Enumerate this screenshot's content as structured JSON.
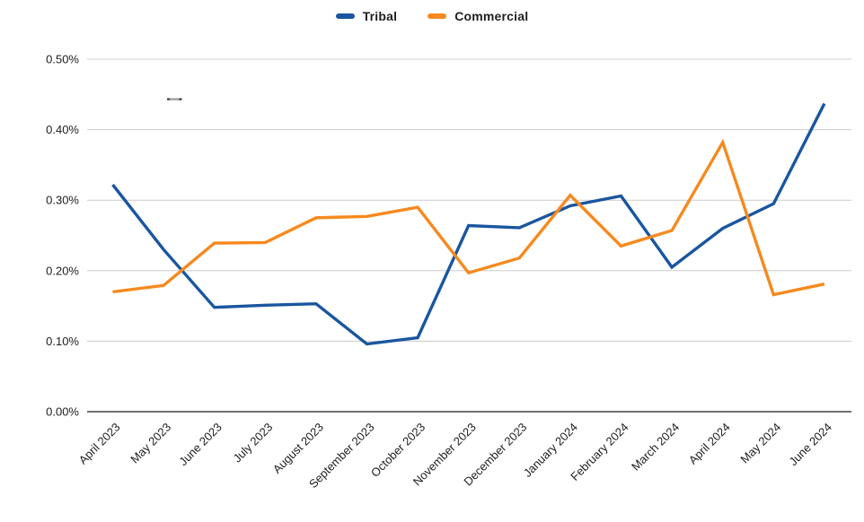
{
  "background_color": "#ffffff",
  "chart_data": {
    "type": "line",
    "title": "",
    "xlabel": "",
    "ylabel": "",
    "x": [
      "April 2023",
      "May 2023",
      "June 2023",
      "July 2023",
      "August 2023",
      "September 2023",
      "October 2023",
      "November 2023",
      "December 2023",
      "January 2024",
      "February 2024",
      "March 2024",
      "April 2024",
      "May 2024",
      "June 2024"
    ],
    "series": [
      {
        "name": "Tribal",
        "color": "#1a569f",
        "unit": "%",
        "values": [
          0.322,
          0.23,
          0.148,
          0.151,
          0.153,
          0.096,
          0.105,
          0.264,
          0.261,
          0.292,
          0.306,
          0.205,
          0.26,
          0.295,
          0.437
        ]
      },
      {
        "name": "Commercial",
        "color": "#f6891e",
        "unit": "%",
        "values": [
          0.17,
          0.179,
          0.239,
          0.24,
          0.275,
          0.277,
          0.29,
          0.197,
          0.218,
          0.307,
          0.235,
          0.257,
          0.382,
          0.166,
          0.181
        ]
      }
    ],
    "y_axis": {
      "range": [
        0,
        0.5
      ],
      "format": "percent",
      "ticks": [
        {
          "value": 0.0,
          "label": "0.00%"
        },
        {
          "value": 0.1,
          "label": "0.10%"
        },
        {
          "value": 0.2,
          "label": "0.20%"
        },
        {
          "value": 0.3,
          "label": "0.30%"
        },
        {
          "value": 0.4,
          "label": "0.40%"
        },
        {
          "value": 0.5,
          "label": "0.50%"
        }
      ]
    },
    "legend_position": "top-center",
    "grid": "horizontal",
    "gridline_color": "#cccccc",
    "baseline_color": "#424242",
    "tick_label_color": "#1d1d1d"
  }
}
